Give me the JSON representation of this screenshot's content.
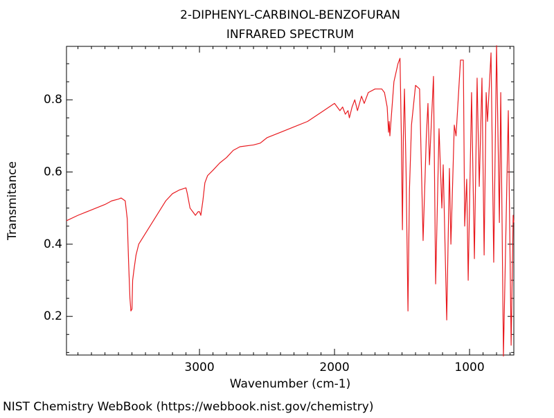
{
  "chart_data": {
    "type": "line",
    "title": "2-DIPHENYL-CARBINOL-BENZOFURAN",
    "subtitle": "INFRARED SPECTRUM",
    "x_label": "Wavenumber (cm-1)",
    "y_label": "Transmitance",
    "footer": "NIST Chemistry WebBook (https://webbook.nist.gov/chemistry)",
    "xlim": [
      3985,
      672
    ],
    "ylim": [
      0.093,
      0.948
    ],
    "xticks": [
      3000,
      2000,
      1000
    ],
    "yticks": [
      0.2,
      0.4,
      0.6,
      0.8
    ],
    "xminorticks": [
      3900,
      3800,
      3700,
      3600,
      3500,
      3400,
      3300,
      3200,
      3100,
      2900,
      2800,
      2700,
      2600,
      2500,
      2400,
      2300,
      2200,
      2100,
      1900,
      1800,
      1700,
      1600,
      1500,
      1400,
      1300,
      1200,
      1100,
      900,
      800,
      700
    ],
    "yminorticks": [
      0.1,
      0.15,
      0.25,
      0.3,
      0.35,
      0.45,
      0.5,
      0.55,
      0.65,
      0.7,
      0.75,
      0.85,
      0.9
    ],
    "series": [
      {
        "color": "#e8191e",
        "x": [
          3985,
          3900,
          3800,
          3700,
          3650,
          3600,
          3580,
          3550,
          3535,
          3525,
          3515,
          3508,
          3500,
          3495,
          3485,
          3470,
          3450,
          3400,
          3350,
          3300,
          3250,
          3200,
          3150,
          3100,
          3090,
          3070,
          3050,
          3030,
          3010,
          3000,
          2990,
          2975,
          2960,
          2940,
          2900,
          2850,
          2800,
          2750,
          2700,
          2600,
          2550,
          2500,
          2400,
          2300,
          2200,
          2100,
          2000,
          1980,
          1960,
          1940,
          1920,
          1900,
          1890,
          1870,
          1850,
          1830,
          1800,
          1780,
          1750,
          1700,
          1650,
          1630,
          1610,
          1600,
          1595,
          1590,
          1580,
          1560,
          1530,
          1515,
          1505,
          1497,
          1490,
          1482,
          1470,
          1456,
          1445,
          1430,
          1400,
          1370,
          1344,
          1320,
          1308,
          1297,
          1267,
          1251,
          1226,
          1205,
          1195,
          1169,
          1149,
          1138,
          1113,
          1100,
          1067,
          1046,
          1036,
          1021,
          1010,
          985,
          964,
          944,
          928,
          908,
          892,
          877,
          867,
          841,
          821,
          800,
          779,
          769,
          749,
          713,
          692,
          677,
          672
        ],
        "values": [
          0.465,
          0.48,
          0.495,
          0.51,
          0.52,
          0.525,
          0.528,
          0.52,
          0.47,
          0.35,
          0.25,
          0.215,
          0.22,
          0.3,
          0.33,
          0.37,
          0.4,
          0.43,
          0.46,
          0.49,
          0.52,
          0.54,
          0.55,
          0.556,
          0.54,
          0.5,
          0.49,
          0.48,
          0.49,
          0.49,
          0.48,
          0.52,
          0.57,
          0.59,
          0.605,
          0.625,
          0.64,
          0.66,
          0.67,
          0.675,
          0.68,
          0.695,
          0.71,
          0.725,
          0.74,
          0.765,
          0.79,
          0.78,
          0.77,
          0.78,
          0.76,
          0.77,
          0.75,
          0.78,
          0.8,
          0.77,
          0.81,
          0.79,
          0.82,
          0.83,
          0.83,
          0.82,
          0.78,
          0.71,
          0.74,
          0.7,
          0.75,
          0.85,
          0.9,
          0.915,
          0.7,
          0.44,
          0.7,
          0.83,
          0.6,
          0.215,
          0.55,
          0.73,
          0.84,
          0.83,
          0.41,
          0.7,
          0.79,
          0.62,
          0.865,
          0.29,
          0.72,
          0.5,
          0.62,
          0.19,
          0.61,
          0.4,
          0.73,
          0.7,
          0.91,
          0.91,
          0.45,
          0.58,
          0.3,
          0.82,
          0.36,
          0.86,
          0.56,
          0.86,
          0.37,
          0.82,
          0.74,
          0.93,
          0.35,
          0.95,
          0.46,
          0.82,
          0.09,
          0.77,
          0.12,
          0.48,
          0.46
        ]
      }
    ]
  }
}
